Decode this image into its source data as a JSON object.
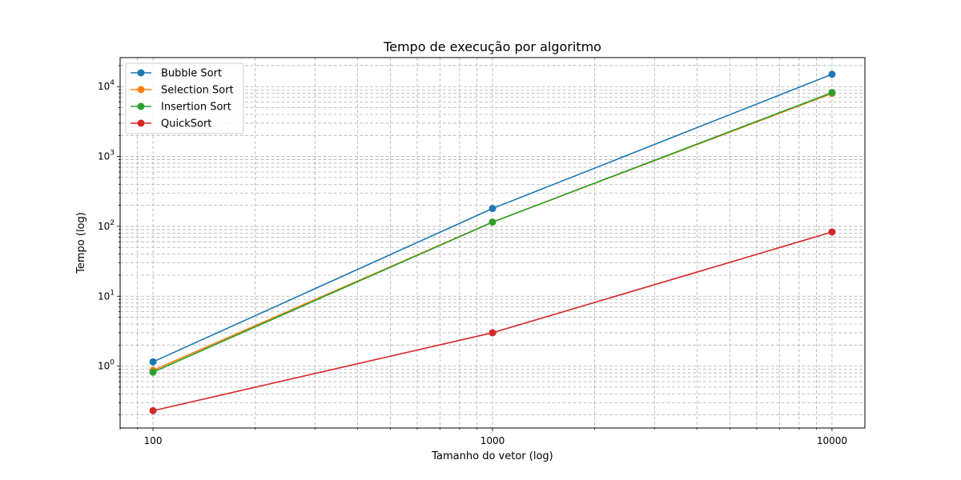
{
  "chart_data": {
    "type": "line",
    "title": "Tempo de execução por algoritmo",
    "xlabel": "Tamanho do vetor (log)",
    "ylabel": "Tempo (log)",
    "xscale": "log",
    "yscale": "log",
    "xlim": [
      80,
      12500
    ],
    "ylim": [
      0.13,
      26000
    ],
    "grid": "both major and minor, dashed",
    "legend_position": "upper-left",
    "x_tick_labels": [
      "100",
      "1000",
      "10000"
    ],
    "y_tick_labels": [
      {
        "base": "10",
        "exp": "0"
      },
      {
        "base": "10",
        "exp": "1"
      },
      {
        "base": "10",
        "exp": "2"
      },
      {
        "base": "10",
        "exp": "3"
      },
      {
        "base": "10",
        "exp": "4"
      }
    ],
    "x": [
      100,
      1000,
      10000
    ],
    "series": [
      {
        "name": "Bubble Sort",
        "color": "#1f77b4",
        "values": [
          1.15,
          180,
          15000
        ]
      },
      {
        "name": "Selection Sort",
        "color": "#ff7f0e",
        "values": [
          0.87,
          115,
          8000
        ]
      },
      {
        "name": "Insertion Sort",
        "color": "#2ca02c",
        "values": [
          0.82,
          115,
          8200
        ]
      },
      {
        "name": "QuickSort",
        "color": "#d62728",
        "values": [
          0.23,
          3.0,
          83
        ]
      }
    ]
  }
}
